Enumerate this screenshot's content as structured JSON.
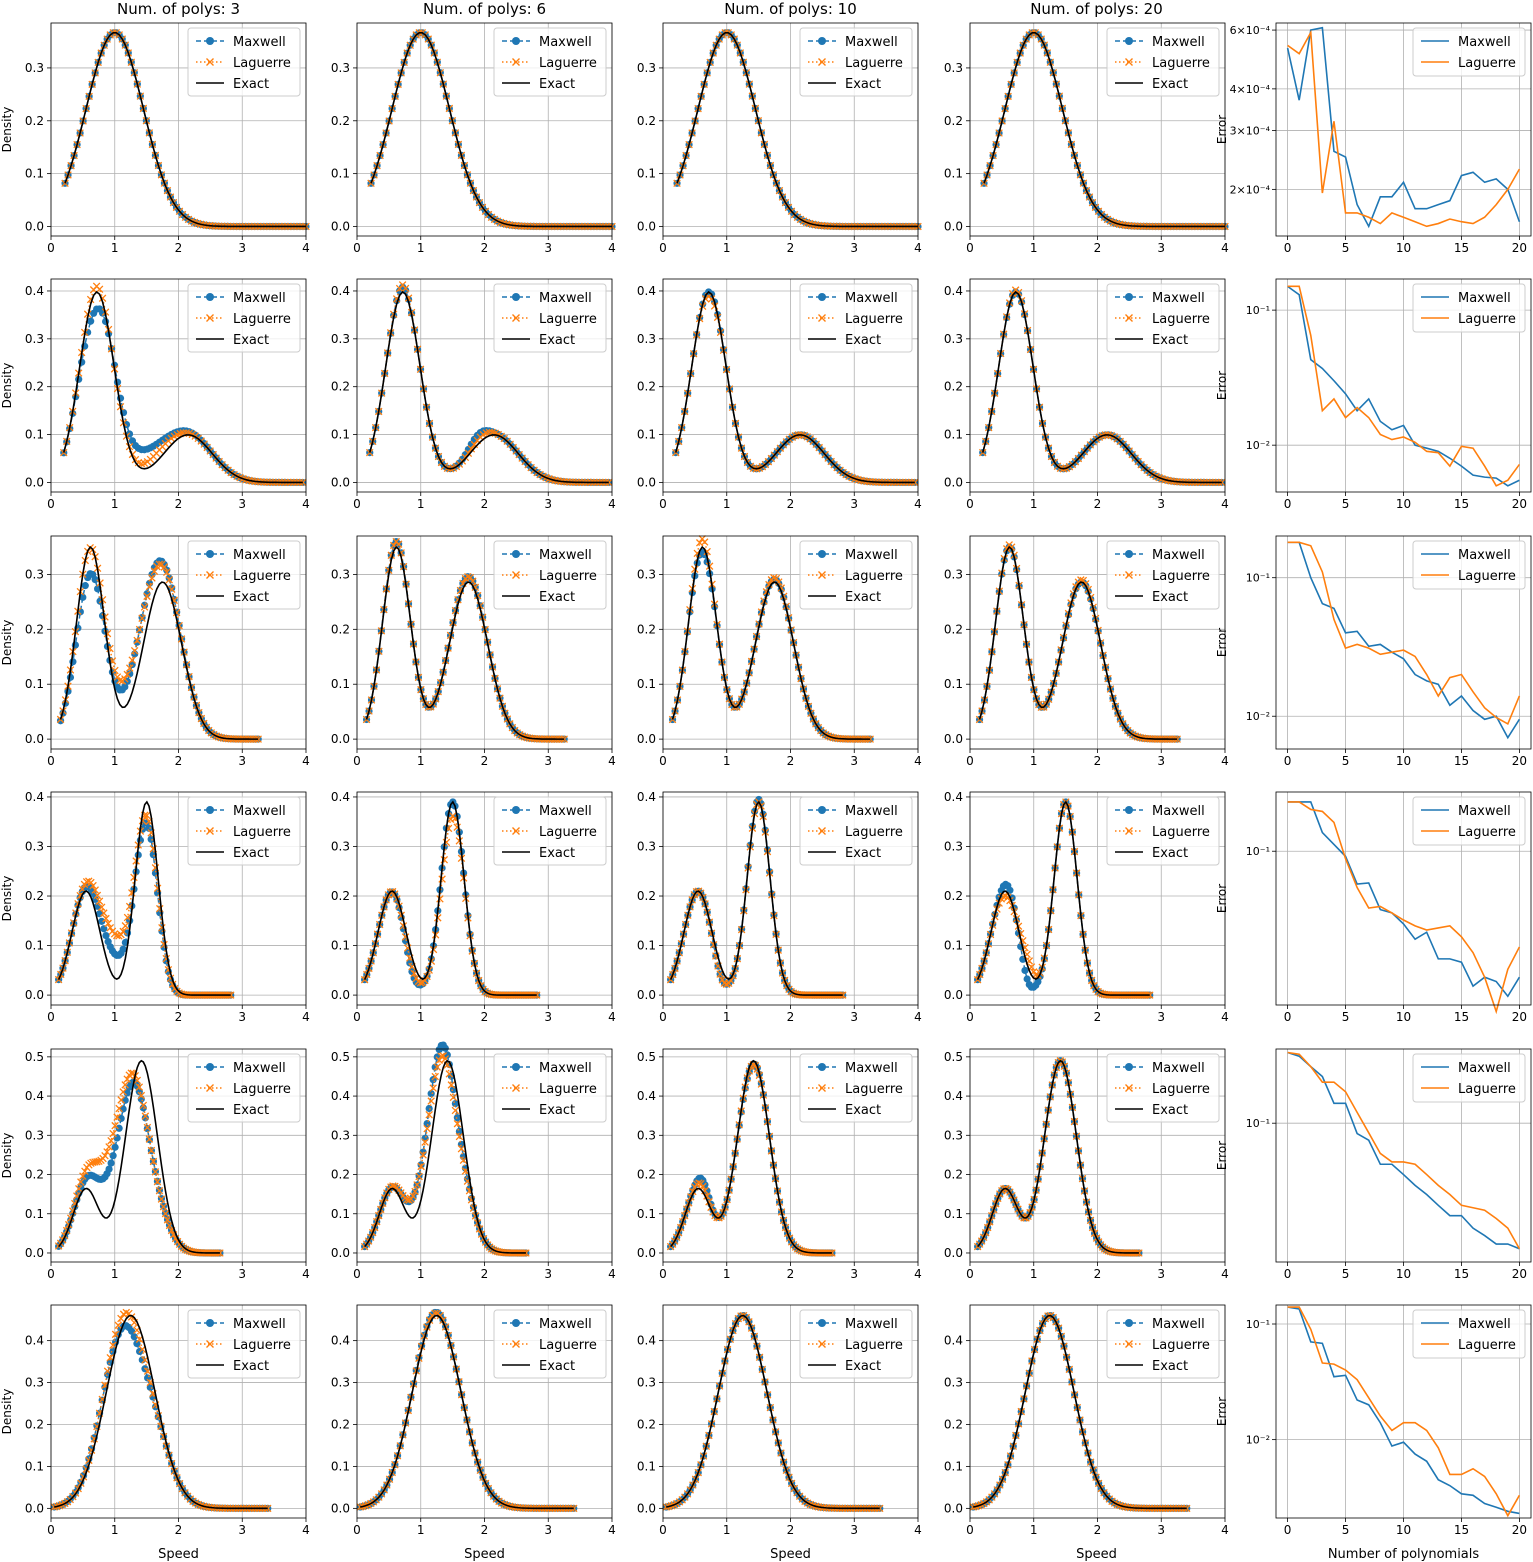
{
  "figure": {
    "col_titles": [
      "Num. of polys: 3",
      "Num. of polys: 6",
      "Num. of polys: 10",
      "Num. of polys: 20"
    ],
    "density_ylabel": "Density",
    "error_ylabel": "Error",
    "speed_xlabel": "Speed",
    "error_xlabel": "Number of polynomials"
  },
  "colors": {
    "maxwell": "#1f77b4",
    "laguerre": "#ff7f0e",
    "exact": "#000000"
  },
  "legend_density": [
    "Maxwell",
    "Laguerre",
    "Exact"
  ],
  "legend_error": [
    "Maxwell",
    "Laguerre"
  ],
  "chart_data": {
    "type": "line",
    "grid": true,
    "legend_position": "top-right",
    "density_panels": {
      "xlim": [
        0,
        4
      ],
      "xticks": [
        0,
        1,
        2,
        3,
        4
      ],
      "series": [
        "Maxwell",
        "Laguerre",
        "Exact"
      ],
      "rows": [
        {
          "ylim": [
            -0.018,
            0.385
          ],
          "yticks": [
            0.0,
            0.1,
            0.2,
            0.3
          ],
          "x_range": [
            0.22,
            4.0
          ],
          "exact_components": [
            [
              1.0,
              0.45,
              1.0
            ]
          ],
          "scale": 0.367,
          "maxwell_deviation": [
            [
              0,
              0,
              0,
              0
            ],
            [
              0,
              0,
              0,
              0
            ],
            [
              0,
              0,
              0,
              0
            ],
            [
              0,
              0,
              0,
              0
            ]
          ],
          "laguerre_deviation": [
            [
              0,
              0,
              0,
              0
            ],
            [
              0,
              0,
              0,
              0
            ],
            [
              0,
              0,
              0,
              0
            ],
            [
              0,
              0,
              0,
              0
            ]
          ]
        },
        {
          "ylim": [
            -0.02,
            0.425
          ],
          "yticks": [
            0.0,
            0.1,
            0.2,
            0.3,
            0.4
          ],
          "x_range": [
            0.2,
            3.95
          ],
          "exact_components": [
            [
              0.72,
              0.27,
              0.8
            ],
            [
              2.15,
              0.38,
              0.2
            ]
          ],
          "scale": 0.398,
          "maxwell_deviation": [
            [
              -0.04,
              0.68,
              0.16,
              0.04,
              1.5,
              0.35
            ],
            [
              0.01,
              0.7,
              0.1,
              0.02,
              1.9,
              0.15
            ],
            [
              0,
              0,
              0,
              0,
              0,
              0
            ],
            [
              0,
              0,
              0,
              0,
              0,
              0
            ]
          ],
          "laguerre_deviation": [
            [
              0.012,
              0.7,
              0.12,
              0.018,
              1.7,
              0.25
            ],
            [
              0.015,
              0.7,
              0.1,
              0.01,
              1.95,
              0.15
            ],
            [
              -0.01,
              0.75,
              0.1,
              0.0,
              0,
              0.1
            ],
            [
              0.004,
              0.72,
              0.1,
              0.0,
              0,
              0.1
            ]
          ]
        },
        {
          "ylim": [
            -0.018,
            0.37
          ],
          "yticks": [
            0.0,
            0.1,
            0.2,
            0.3
          ],
          "x_range": [
            0.15,
            3.25
          ],
          "exact_components": [
            [
              0.62,
              0.22,
              0.55
            ],
            [
              1.75,
              0.3,
              0.45
            ]
          ],
          "scale": 0.35,
          "maxwell_deviation": [
            [
              -0.05,
              0.6,
              0.18,
              0.06,
              1.45,
              0.3
            ],
            [
              0.01,
              0.6,
              0.12,
              0.01,
              1.7,
              0.2
            ],
            [
              -0.01,
              0.65,
              0.1,
              0.005,
              1.7,
              0.2
            ],
            [
              0,
              0,
              0,
              0,
              0,
              0
            ]
          ],
          "laguerre_deviation": [
            [
              -0.01,
              0.72,
              0.15,
              0.06,
              1.35,
              0.35
            ],
            [
              0.01,
              0.6,
              0.12,
              0.01,
              1.7,
              0.2
            ],
            [
              0.015,
              0.6,
              0.1,
              0.008,
              1.72,
              0.18
            ],
            [
              0.004,
              0.62,
              0.1,
              0.004,
              1.75,
              0.18
            ]
          ]
        },
        {
          "ylim": [
            -0.02,
            0.41
          ],
          "yticks": [
            0.0,
            0.1,
            0.2,
            0.3,
            0.4
          ],
          "x_range": [
            0.12,
            2.82
          ],
          "exact_components": [
            [
              0.55,
              0.22,
              0.35
            ],
            [
              1.5,
              0.18,
              0.65
            ]
          ],
          "scale": 0.39,
          "maxwell_deviation": [
            [
              0.05,
              1.0,
              0.25,
              -0.05,
              1.55,
              0.2
            ],
            [
              -0.03,
              0.85,
              0.12,
              0.0,
              0,
              0.2
            ],
            [
              -0.02,
              0.9,
              0.1,
              0.005,
              1.5,
              0.15
            ],
            [
              0.015,
              0.6,
              0.1,
              -0.03,
              0.9,
              0.1
            ]
          ],
          "laguerre_deviation": [
            [
              0.09,
              1.0,
              0.25,
              -0.04,
              1.55,
              0.2
            ],
            [
              -0.02,
              0.85,
              0.12,
              -0.03,
              1.45,
              0.15
            ],
            [
              -0.02,
              0.9,
              0.1,
              0.0,
              0,
              0.15
            ],
            [
              -0.01,
              0.55,
              0.1,
              0.02,
              0.9,
              0.1
            ]
          ]
        },
        {
          "ylim": [
            -0.023,
            0.52
          ],
          "yticks": [
            0.0,
            0.1,
            0.2,
            0.3,
            0.4,
            0.5
          ],
          "x_range": [
            0.12,
            2.65
          ],
          "exact_components": [
            [
              0.55,
              0.2,
              0.25
            ],
            [
              1.42,
              0.25,
              0.75
            ]
          ],
          "scale": 0.49,
          "maxwell_deviation": [
            [
              0.15,
              1.1,
              0.3,
              -0.2,
              1.5,
              0.2
            ],
            [
              0.12,
              1.2,
              0.25,
              -0.1,
              1.55,
              0.15
            ],
            [
              0.03,
              0.62,
              0.1,
              -0.01,
              1.35,
              0.1
            ],
            [
              0.0,
              0,
              0.1,
              0.0,
              0,
              0.1
            ]
          ],
          "laguerre_deviation": [
            [
              0.2,
              1.05,
              0.3,
              -0.2,
              1.5,
              0.2
            ],
            [
              0.1,
              1.15,
              0.25,
              -0.1,
              1.55,
              0.15
            ],
            [
              0.015,
              0.6,
              0.1,
              -0.01,
              1.4,
              0.1
            ],
            [
              0.0,
              0,
              0.1,
              0.0,
              0,
              0.1
            ]
          ]
        },
        {
          "ylim": [
            -0.023,
            0.485
          ],
          "yticks": [
            0.0,
            0.1,
            0.2,
            0.3,
            0.4
          ],
          "x_range": [
            0.05,
            3.4
          ],
          "exact_components": [
            [
              1.25,
              0.38,
              1.0
            ]
          ],
          "scale": 0.46,
          "maxwell_deviation": [
            [
              0.03,
              0.9,
              0.25,
              -0.06,
              1.4,
              0.2
            ],
            [
              0.01,
              1.1,
              0.2,
              0.0,
              0,
              0.2
            ],
            [
              0,
              0,
              0,
              0,
              0,
              0
            ],
            [
              0,
              0,
              0,
              0,
              0,
              0
            ]
          ],
          "laguerre_deviation": [
            [
              0.04,
              1.0,
              0.25,
              -0.04,
              1.45,
              0.2
            ],
            [
              0.008,
              1.1,
              0.2,
              0.0,
              0,
              0.2
            ],
            [
              0,
              0,
              0,
              0,
              0,
              0
            ],
            [
              0,
              0,
              0,
              0,
              0,
              0
            ]
          ]
        }
      ]
    },
    "error_panels": {
      "x": [
        0,
        1,
        2,
        3,
        4,
        5,
        6,
        7,
        8,
        9,
        10,
        11,
        12,
        13,
        14,
        15,
        16,
        17,
        18,
        19,
        20
      ],
      "xticks": [
        0,
        5,
        10,
        15,
        20
      ],
      "xlim": [
        -1,
        21
      ],
      "yscale": "log",
      "rows": [
        {
          "ylim": [
            0.000145,
            0.00063
          ],
          "yticks": [
            {
              "value": 0.0006,
              "label": "6×10⁻⁴"
            },
            {
              "value": 0.0004,
              "label": "4×10⁻⁴"
            },
            {
              "value": 0.0003,
              "label": "3×10⁻⁴"
            },
            {
              "value": 0.0002,
              "label": "2×10⁻⁴"
            }
          ],
          "maxwell": [
            0.00053,
            0.00037,
            0.0006,
            0.00061,
            0.00026,
            0.00025,
            0.00018,
            0.000155,
            0.00019,
            0.00019,
            0.00021,
            0.000175,
            0.000175,
            0.00018,
            0.000185,
            0.00022,
            0.000225,
            0.00021,
            0.000215,
            0.0002,
            0.00016
          ],
          "laguerre": [
            0.00054,
            0.00051,
            0.00059,
            0.000195,
            0.00032,
            0.00017,
            0.00017,
            0.000165,
            0.000158,
            0.00017,
            0.000165,
            0.00016,
            0.000155,
            0.000158,
            0.000163,
            0.00016,
            0.000158,
            0.000165,
            0.00018,
            0.0002,
            0.00023
          ]
        },
        {
          "ylim": [
            0.0045,
            0.17
          ],
          "yticks": [
            {
              "value": 0.1,
              "label": "10⁻¹"
            },
            {
              "value": 0.01,
              "label": "10⁻²"
            }
          ],
          "maxwell": [
            0.15,
            0.13,
            0.043,
            0.037,
            0.03,
            0.024,
            0.018,
            0.022,
            0.015,
            0.013,
            0.014,
            0.01,
            0.0095,
            0.009,
            0.008,
            0.007,
            0.006,
            0.0058,
            0.0057,
            0.005,
            0.0055
          ],
          "laguerre": [
            0.15,
            0.15,
            0.065,
            0.018,
            0.022,
            0.016,
            0.019,
            0.016,
            0.012,
            0.011,
            0.0115,
            0.0105,
            0.009,
            0.0088,
            0.007,
            0.0098,
            0.0095,
            0.007,
            0.005,
            0.0055,
            0.0072
          ]
        },
        {
          "ylim": [
            0.0058,
            0.2
          ],
          "yticks": [
            {
              "value": 0.1,
              "label": "10⁻¹"
            },
            {
              "value": 0.01,
              "label": "10⁻²"
            }
          ],
          "maxwell": [
            0.18,
            0.18,
            0.1,
            0.065,
            0.06,
            0.04,
            0.041,
            0.032,
            0.033,
            0.029,
            0.026,
            0.02,
            0.018,
            0.017,
            0.012,
            0.014,
            0.011,
            0.0095,
            0.01,
            0.007,
            0.0095
          ],
          "laguerre": [
            0.18,
            0.18,
            0.17,
            0.11,
            0.05,
            0.031,
            0.033,
            0.031,
            0.028,
            0.029,
            0.03,
            0.027,
            0.02,
            0.014,
            0.019,
            0.02,
            0.015,
            0.0115,
            0.0098,
            0.0088,
            0.014
          ]
        },
        {
          "ylim": [
            0.0115,
            0.23
          ],
          "yticks": [
            {
              "value": 0.1,
              "label": "10⁻¹"
            }
          ],
          "maxwell": [
            0.2,
            0.2,
            0.2,
            0.13,
            0.11,
            0.093,
            0.063,
            0.064,
            0.044,
            0.042,
            0.036,
            0.029,
            0.032,
            0.022,
            0.022,
            0.021,
            0.015,
            0.017,
            0.016,
            0.013,
            0.017
          ],
          "laguerre": [
            0.2,
            0.2,
            0.18,
            0.175,
            0.15,
            0.09,
            0.06,
            0.045,
            0.046,
            0.042,
            0.038,
            0.035,
            0.033,
            0.034,
            0.035,
            0.03,
            0.024,
            0.017,
            0.0105,
            0.019,
            0.026
          ]
        },
        {
          "ylim": [
            0.0096,
            0.35
          ],
          "yticks": [
            {
              "value": 0.1,
              "label": "10⁻¹"
            }
          ],
          "maxwell": [
            0.33,
            0.31,
            0.26,
            0.22,
            0.14,
            0.14,
            0.084,
            0.075,
            0.05,
            0.05,
            0.042,
            0.035,
            0.03,
            0.025,
            0.021,
            0.021,
            0.017,
            0.015,
            0.013,
            0.013,
            0.012
          ],
          "laguerre": [
            0.33,
            0.32,
            0.26,
            0.2,
            0.2,
            0.17,
            0.12,
            0.085,
            0.06,
            0.052,
            0.052,
            0.05,
            0.042,
            0.035,
            0.03,
            0.025,
            0.024,
            0.023,
            0.02,
            0.017,
            0.012
          ]
        },
        {
          "ylim": [
            0.0021,
            0.146
          ],
          "yticks": [
            {
              "value": 0.1,
              "label": "10⁻¹"
            },
            {
              "value": 0.01,
              "label": "10⁻²"
            }
          ],
          "maxwell": [
            0.14,
            0.135,
            0.07,
            0.068,
            0.035,
            0.036,
            0.022,
            0.02,
            0.014,
            0.0088,
            0.0095,
            0.0075,
            0.0065,
            0.0045,
            0.004,
            0.0034,
            0.0033,
            0.0028,
            0.0026,
            0.0024,
            0.0023
          ],
          "laguerre": [
            0.14,
            0.14,
            0.09,
            0.046,
            0.045,
            0.04,
            0.033,
            0.023,
            0.016,
            0.012,
            0.014,
            0.014,
            0.012,
            0.0085,
            0.005,
            0.005,
            0.0056,
            0.0048,
            0.0034,
            0.0022,
            0.0033
          ]
        }
      ]
    }
  }
}
